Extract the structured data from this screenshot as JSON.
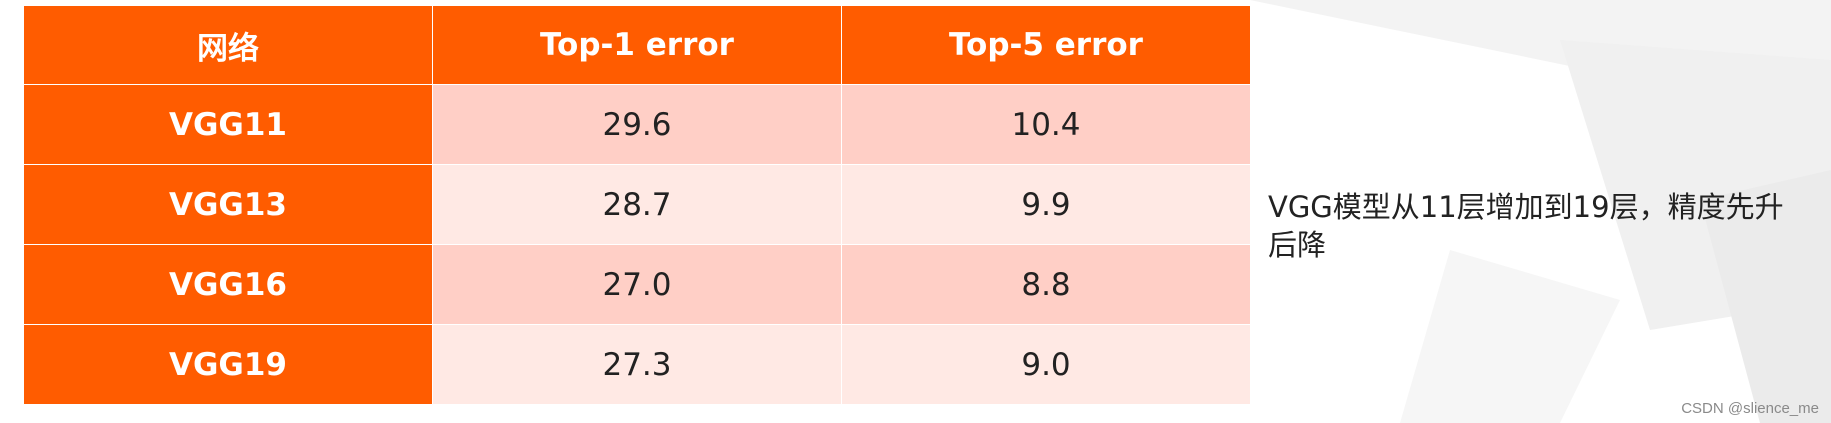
{
  "table": {
    "header": [
      "网络",
      "Top-1 error",
      "Top-5 error"
    ],
    "rows": [
      {
        "label": "VGG11",
        "values": [
          "29.6",
          "10.4"
        ]
      },
      {
        "label": "VGG13",
        "values": [
          "28.7",
          "9.9"
        ]
      },
      {
        "label": "VGG16",
        "values": [
          "27.0",
          "8.8"
        ]
      },
      {
        "label": "VGG19",
        "values": [
          "27.3",
          "9.0"
        ]
      }
    ]
  },
  "chart_data": {
    "type": "table",
    "columns": [
      "网络",
      "Top-1 error",
      "Top-5 error"
    ],
    "rows": [
      [
        "VGG11",
        29.6,
        10.4
      ],
      [
        "VGG13",
        28.7,
        9.9
      ],
      [
        "VGG16",
        27.0,
        8.8
      ],
      [
        "VGG19",
        27.3,
        9.0
      ]
    ]
  },
  "note": "VGG模型从11层增加到19层，精度先升后降",
  "watermark": "CSDN @slience_me",
  "colors": {
    "header_bg": "#ff5c00",
    "row_odd": "#ffcfc6",
    "row_even": "#ffe9e4"
  }
}
